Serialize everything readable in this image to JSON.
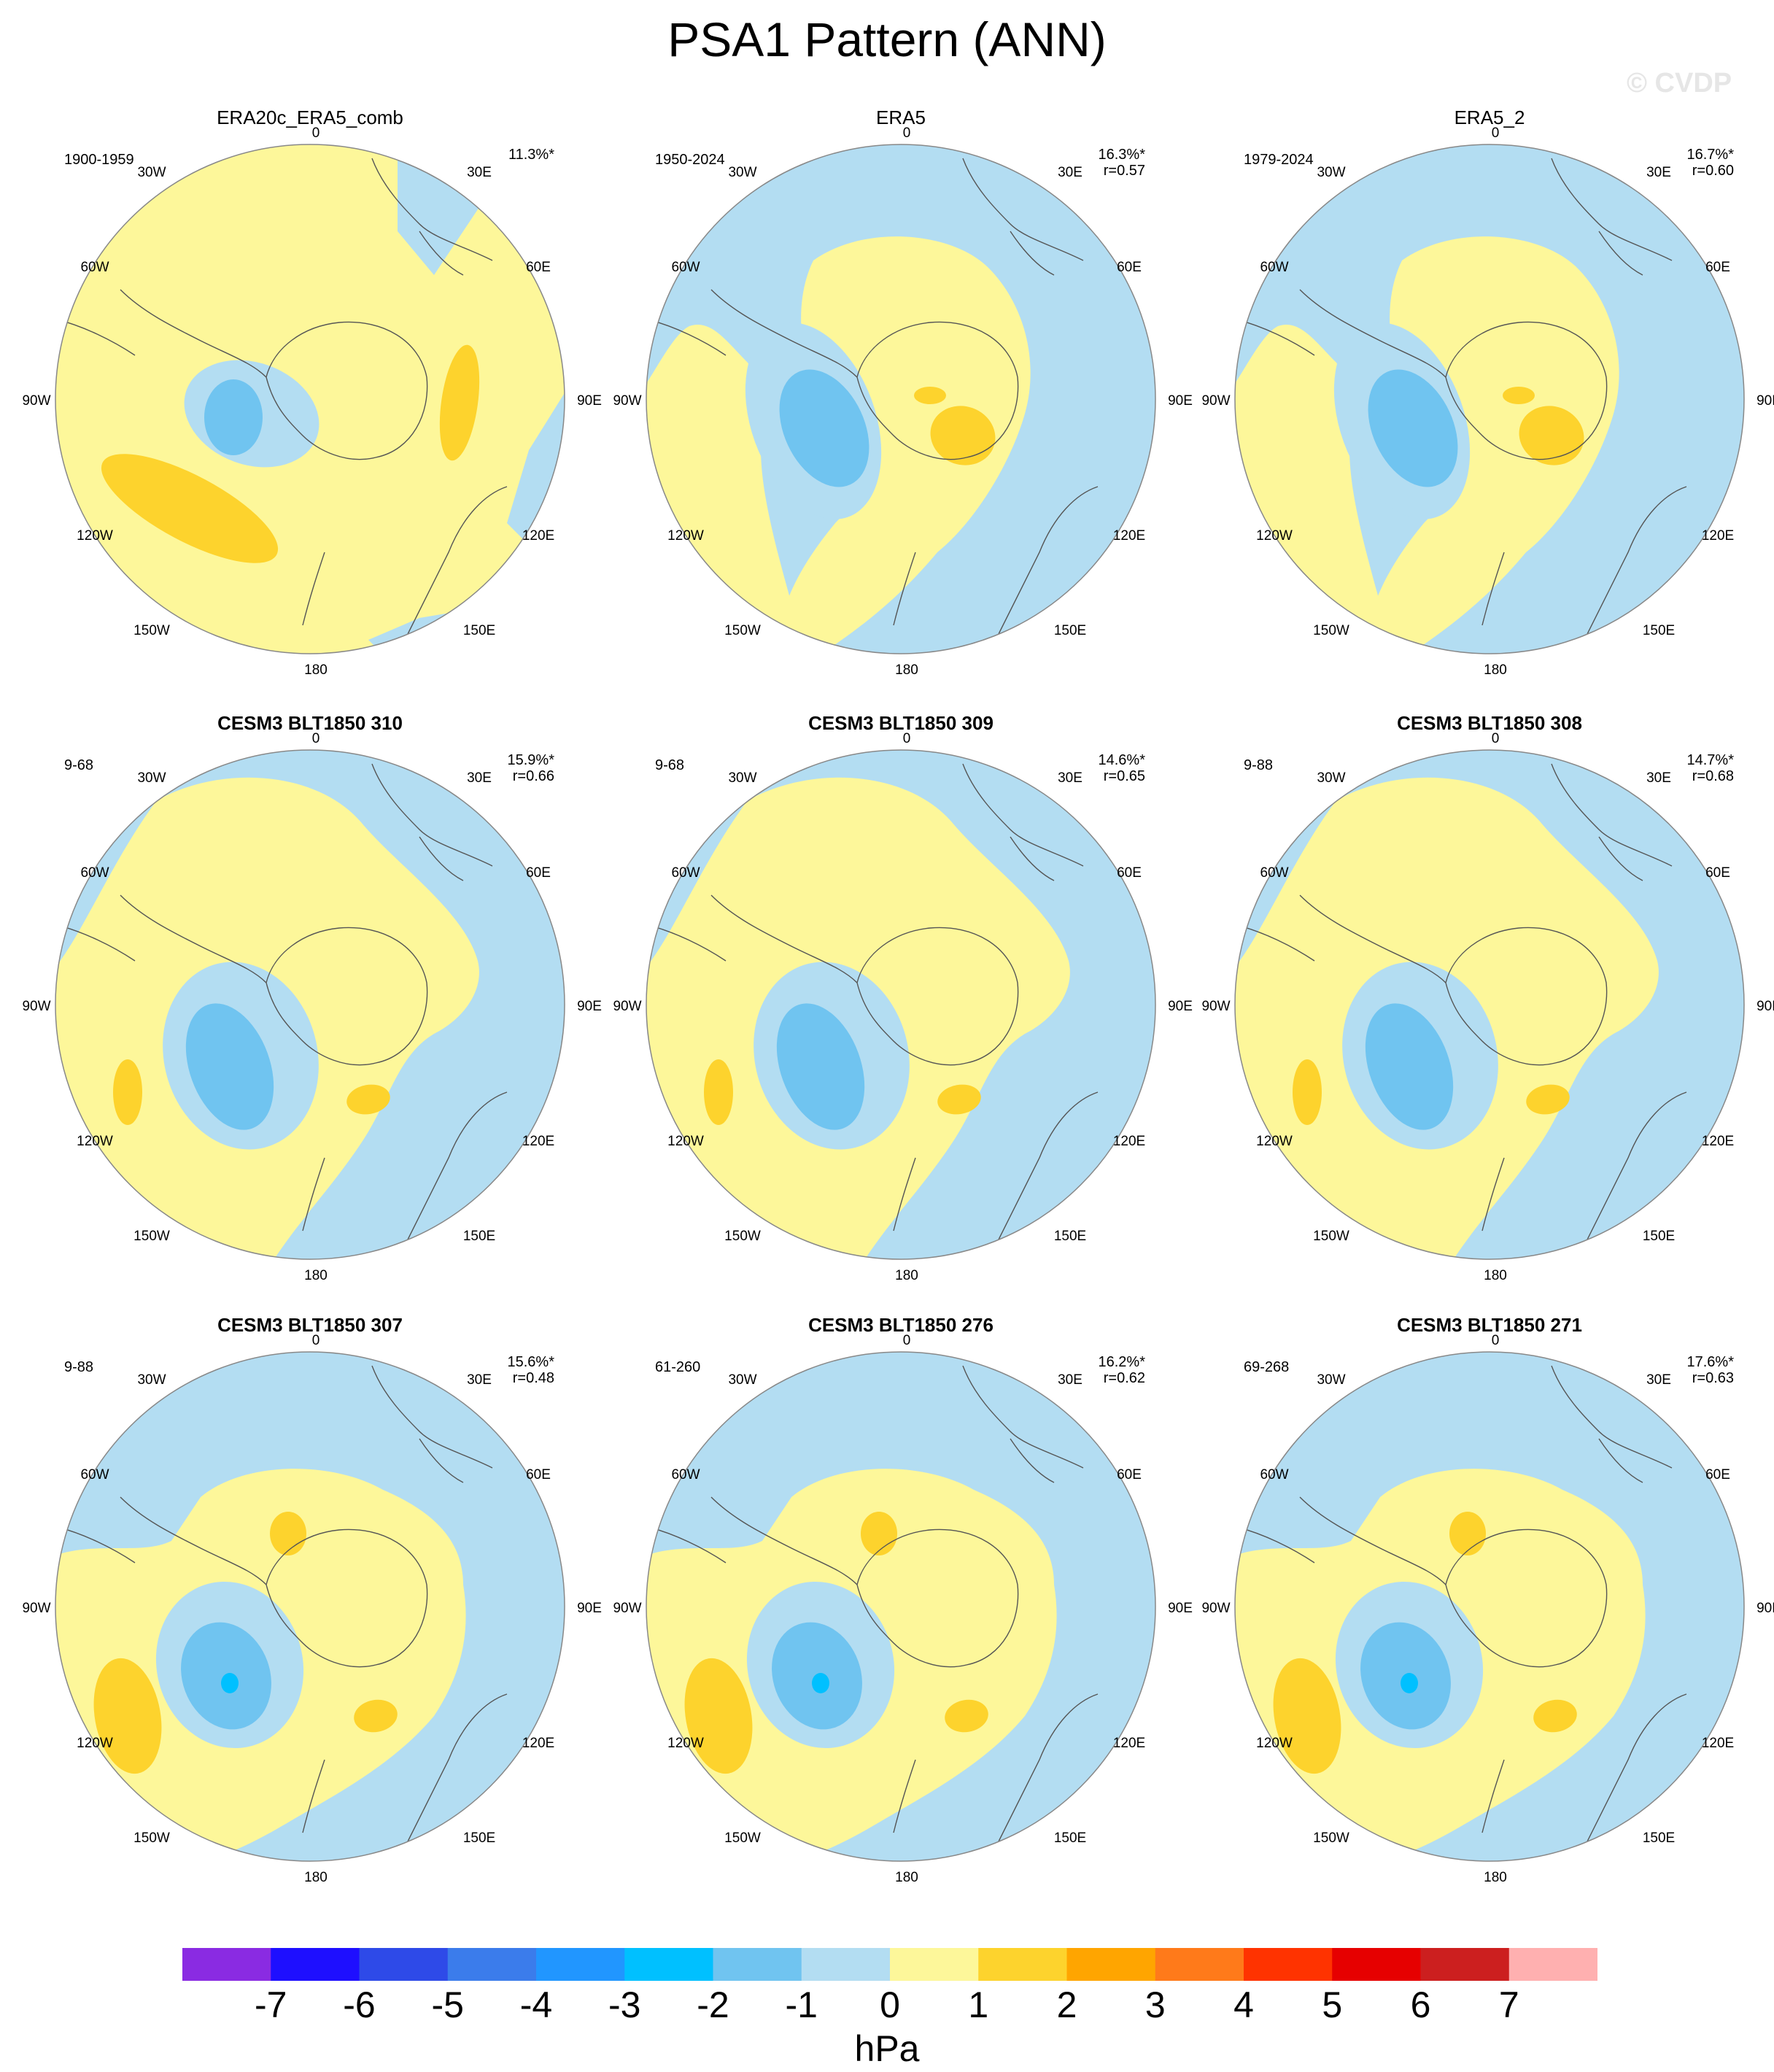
{
  "title": "PSA1 Pattern (ANN)",
  "watermark": "© CVDP",
  "lon_labels": [
    "0",
    "30E",
    "60E",
    "90E",
    "120E",
    "150E",
    "180",
    "150W",
    "120W",
    "90W",
    "60W",
    "30W"
  ],
  "panels": [
    {
      "title": "ERA20c_ERA5_comb",
      "period": "1900-1959",
      "pct": "11.3%*",
      "r": "",
      "variant": "a"
    },
    {
      "title": "ERA5",
      "period": "1950-2024",
      "pct": "16.3%*",
      "r": "r=0.57",
      "variant": "b"
    },
    {
      "title": "ERA5_2",
      "period": "1979-2024",
      "pct": "16.7%*",
      "r": "r=0.60",
      "variant": "b"
    },
    {
      "title": "CESM3 BLT1850 310",
      "period": "9-68",
      "pct": "15.9%*",
      "r": "r=0.66",
      "variant": "c"
    },
    {
      "title": "CESM3 BLT1850 309",
      "period": "9-68",
      "pct": "14.6%*",
      "r": "r=0.65",
      "variant": "c"
    },
    {
      "title": "CESM3 BLT1850 308",
      "period": "9-88",
      "pct": "14.7%*",
      "r": "r=0.68",
      "variant": "c"
    },
    {
      "title": "CESM3 BLT1850 307",
      "period": "9-88",
      "pct": "15.6%*",
      "r": "r=0.48",
      "variant": "d"
    },
    {
      "title": "CESM3 BLT1850 276",
      "period": "61-260",
      "pct": "16.2%*",
      "r": "r=0.62",
      "variant": "d"
    },
    {
      "title": "CESM3 BLT1850 271",
      "period": "69-268",
      "pct": "17.6%*",
      "r": "r=0.63",
      "variant": "d"
    }
  ],
  "colorbar": {
    "units": "hPa",
    "labels": [
      "-7",
      "-6",
      "-5",
      "-4",
      "-3",
      "-2",
      "-1",
      "0",
      "1",
      "2",
      "3",
      "4",
      "5",
      "6",
      "7"
    ],
    "colors": [
      "#8a2be2",
      "#1e0fff",
      "#2e4ae8",
      "#3b7ceb",
      "#2196ff",
      "#00c0ff",
      "#70c4f0",
      "#b3ddf2",
      "#fdf79a",
      "#fdd32d",
      "#ffa500",
      "#ff7a1a",
      "#ff3300",
      "#e60000",
      "#cc1f1f",
      "#ffb0b0"
    ]
  }
}
